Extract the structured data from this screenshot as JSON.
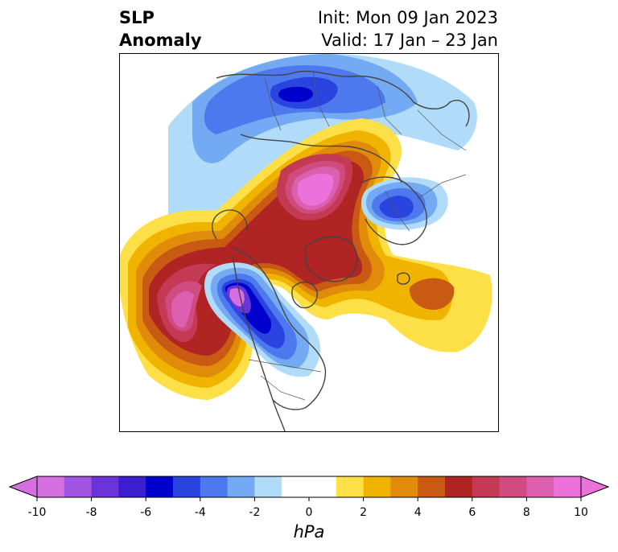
{
  "title": {
    "main_line1": "SLP",
    "main_line2": "Anomaly",
    "init_text": "Init: Mon 09 Jan 2023",
    "valid_text": "Valid: 17 Jan – 23 Jan"
  },
  "colorbar": {
    "unit": "hPa",
    "tick_labels": [
      "-10",
      "-8",
      "-6",
      "-4",
      "-2",
      "0",
      "2",
      "4",
      "6",
      "8",
      "10"
    ],
    "colors": [
      "#d670e0",
      "#a054e0",
      "#6a34d8",
      "#3a1ed0",
      "#0000cc",
      "#2a44e0",
      "#4e78ee",
      "#74aaf4",
      "#b0dcfa",
      "#ffffff",
      "#ffffff",
      "#fde047",
      "#f0b400",
      "#e08c0a",
      "#c85a14",
      "#b02424",
      "#c43a54",
      "#d04c80",
      "#dc60b0",
      "#ea72da"
    ],
    "range": [
      -10,
      10
    ],
    "extend": "both"
  },
  "map": {
    "field": "SLP Anomaly",
    "projection": "north-polar",
    "coastline_color": "#444444"
  }
}
